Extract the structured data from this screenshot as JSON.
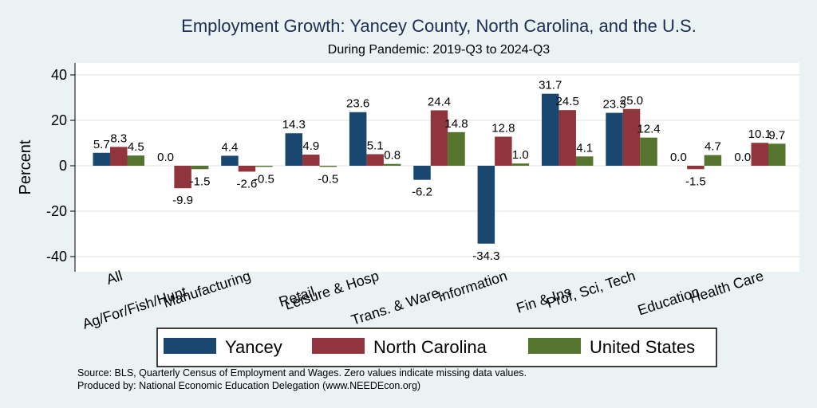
{
  "chart_data": {
    "type": "bar",
    "title": "Employment Growth: Yancey County, North Carolina, and the U.S.",
    "subtitle": "During Pandemic: 2019-Q3 to 2024-Q3",
    "xlabel": "",
    "ylabel": "Percent",
    "ylim": [
      -45,
      45
    ],
    "yticks": [
      -40,
      -20,
      0,
      20,
      40
    ],
    "grid": true,
    "legend_position": "bottom",
    "categories": [
      "All",
      "Ag/For/Fish/Hunt",
      "Manufacturing",
      "Retail",
      "Leisure & Hosp",
      "Trans. & Ware.",
      "Information",
      "Fin & Ins",
      "Prof, Sci, Tech",
      "Education",
      "Health Care"
    ],
    "series": [
      {
        "name": "Yancey",
        "color": "#1a476f",
        "values": [
          5.7,
          0.0,
          4.4,
          14.3,
          23.6,
          -6.2,
          -34.3,
          31.7,
          23.3,
          0.0,
          0.0
        ],
        "labels": [
          "5.7",
          "0.0",
          "4.4",
          "14.3",
          "23.6",
          "-6.2",
          "-34.3",
          "31.7",
          "23.3",
          "0.0",
          "0.0"
        ]
      },
      {
        "name": "North Carolina",
        "color": "#90353b",
        "values": [
          8.3,
          -9.9,
          -2.6,
          4.9,
          5.1,
          24.4,
          12.8,
          24.5,
          25.0,
          -1.5,
          10.1
        ],
        "labels": [
          "8.3",
          "-9.9",
          "-2.6",
          "4.9",
          "5.1",
          "24.4",
          "12.8",
          "24.5",
          "25.0",
          "-1.5",
          "10.1"
        ]
      },
      {
        "name": "United States",
        "color": "#55752f",
        "values": [
          4.5,
          -1.5,
          -0.5,
          -0.5,
          0.8,
          14.8,
          1.0,
          4.1,
          12.4,
          4.7,
          9.7
        ],
        "labels": [
          "4.5",
          "-1.5",
          "-0.5",
          "-0.5",
          "0.8",
          "14.8",
          "1.0",
          "4.1",
          "12.4",
          "4.7",
          "9.7"
        ]
      }
    ]
  },
  "notes": {
    "source": "Source: BLS, Quarterly Census of Employment and Wages. Zero values indicate missing data values.",
    "produced": "Produced by: National Economic Education Delegation (www.NEEDEcon.org)"
  }
}
